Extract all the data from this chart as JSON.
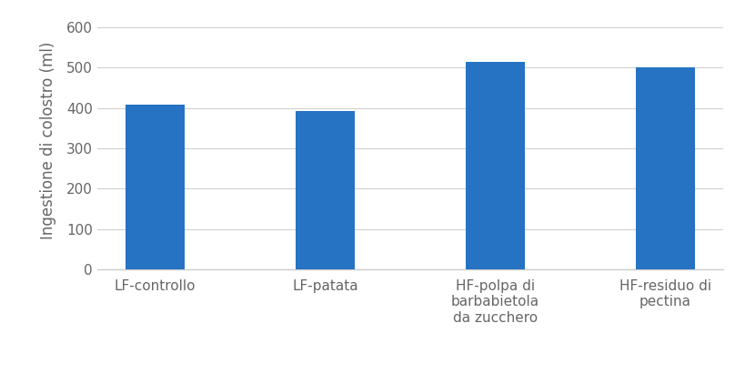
{
  "categories": [
    "LF-controllo",
    "LF-patata",
    "HF-polpa di\nbarbabietola\nda zucchero",
    "HF-residuo di\npectina"
  ],
  "values": [
    408,
    393,
    515,
    500
  ],
  "bar_color": "#2573C2",
  "ylabel": "Ingestione di colostro (ml)",
  "ylim": [
    0,
    640
  ],
  "yticks": [
    0,
    100,
    200,
    300,
    400,
    500,
    600
  ],
  "background_color": "#ffffff",
  "bar_width": 0.35,
  "ylabel_fontsize": 12,
  "tick_fontsize": 11,
  "label_color": "#666666",
  "grid_color": "#d0d0d0",
  "bottom_spine_color": "#cccccc"
}
